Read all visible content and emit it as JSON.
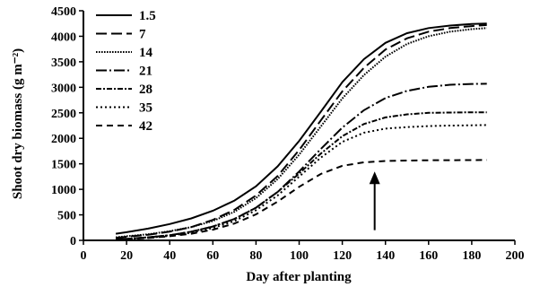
{
  "chart_data": {
    "type": "line",
    "title": "",
    "xlabel": "Day after planting",
    "ylabel": "Shoot dry biomass (g m⁻²)",
    "xlim": [
      0,
      200
    ],
    "ylim": [
      0,
      4500
    ],
    "x_ticks": [
      0,
      20,
      40,
      60,
      80,
      100,
      120,
      140,
      160,
      180,
      200
    ],
    "y_ticks": [
      0,
      500,
      1000,
      1500,
      2000,
      2500,
      3000,
      3500,
      4000,
      4500
    ],
    "grid": false,
    "legend_position": "top-left",
    "annotation": {
      "type": "arrow",
      "x": 135,
      "y_from": 200,
      "y_to": 1350
    },
    "series": [
      {
        "name": "1.5",
        "style": "solid",
        "x": [
          15,
          20,
          30,
          40,
          50,
          60,
          70,
          80,
          90,
          100,
          110,
          120,
          130,
          140,
          150,
          160,
          170,
          180,
          187
        ],
        "y": [
          130,
          160,
          230,
          320,
          430,
          580,
          780,
          1060,
          1450,
          1950,
          2520,
          3100,
          3550,
          3870,
          4060,
          4160,
          4210,
          4240,
          4250
        ]
      },
      {
        "name": "7",
        "style": "longdash",
        "x": [
          15,
          20,
          30,
          40,
          50,
          60,
          70,
          80,
          90,
          100,
          110,
          120,
          130,
          140,
          150,
          160,
          170,
          180,
          187
        ],
        "y": [
          50,
          70,
          110,
          170,
          260,
          400,
          600,
          880,
          1260,
          1770,
          2350,
          2920,
          3380,
          3740,
          3960,
          4090,
          4160,
          4200,
          4220
        ]
      },
      {
        "name": "14",
        "style": "dotted-dense",
        "x": [
          15,
          20,
          30,
          40,
          50,
          60,
          70,
          80,
          90,
          100,
          110,
          120,
          130,
          140,
          150,
          160,
          170,
          180,
          187
        ],
        "y": [
          60,
          80,
          120,
          180,
          260,
          380,
          560,
          830,
          1200,
          1680,
          2230,
          2780,
          3240,
          3600,
          3850,
          4000,
          4090,
          4140,
          4160
        ]
      },
      {
        "name": "21",
        "style": "longdash-dot",
        "x": [
          15,
          20,
          30,
          40,
          50,
          60,
          70,
          80,
          90,
          100,
          110,
          120,
          130,
          140,
          150,
          160,
          170,
          180,
          187
        ],
        "y": [
          20,
          30,
          60,
          100,
          170,
          270,
          420,
          640,
          950,
          1350,
          1790,
          2210,
          2550,
          2790,
          2930,
          3010,
          3050,
          3065,
          3070
        ]
      },
      {
        "name": "28",
        "style": "dashdot",
        "x": [
          15,
          20,
          30,
          40,
          50,
          60,
          70,
          80,
          90,
          100,
          110,
          120,
          130,
          140,
          150,
          160,
          170,
          180,
          187
        ],
        "y": [
          20,
          30,
          60,
          100,
          170,
          270,
          420,
          640,
          950,
          1310,
          1700,
          2040,
          2280,
          2410,
          2470,
          2500,
          2505,
          2510,
          2510
        ]
      },
      {
        "name": "35",
        "style": "dotted",
        "x": [
          15,
          20,
          30,
          40,
          50,
          60,
          70,
          80,
          90,
          100,
          110,
          120,
          130,
          140,
          150,
          160,
          170,
          180,
          187
        ],
        "y": [
          20,
          30,
          50,
          90,
          150,
          240,
          380,
          590,
          880,
          1250,
          1620,
          1930,
          2110,
          2190,
          2220,
          2240,
          2250,
          2255,
          2260
        ]
      },
      {
        "name": "42",
        "style": "dash",
        "x": [
          15,
          20,
          30,
          40,
          50,
          60,
          70,
          80,
          90,
          100,
          110,
          120,
          130,
          140,
          150,
          160,
          170,
          180,
          187
        ],
        "y": [
          15,
          25,
          45,
          80,
          130,
          210,
          330,
          510,
          760,
          1050,
          1300,
          1460,
          1530,
          1555,
          1565,
          1570,
          1572,
          1574,
          1575
        ]
      }
    ]
  }
}
